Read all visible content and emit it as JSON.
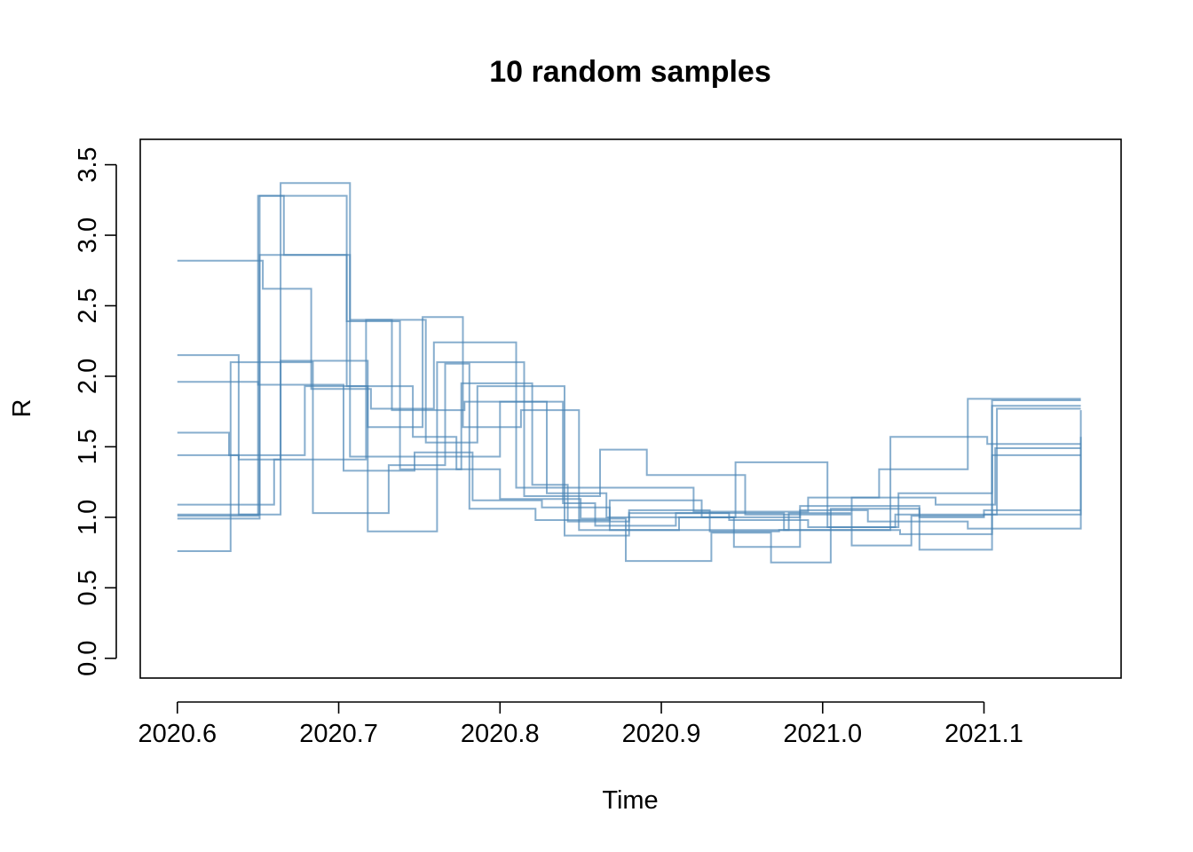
{
  "chart_data": {
    "type": "line",
    "step": "post",
    "title": "10 random samples",
    "xlabel": "Time",
    "ylabel": "R",
    "xlim": [
      2020.577,
      2021.185
    ],
    "ylim": [
      -0.14,
      3.68
    ],
    "xticks": [
      2020.6,
      2020.7,
      2020.8,
      2020.9,
      2021.0,
      2021.1
    ],
    "xtick_labels": [
      "2020.6",
      "2020.7",
      "2020.8",
      "2020.9",
      "2021.0",
      "2021.1"
    ],
    "yticks": [
      0.0,
      0.5,
      1.0,
      1.5,
      2.0,
      2.5,
      3.0,
      3.5
    ],
    "ytick_labels": [
      "0.0",
      "0.5",
      "1.0",
      "1.5",
      "2.0",
      "2.5",
      "3.0",
      "3.5"
    ],
    "grid": false,
    "legend": "none",
    "line_color": "#4682b4",
    "line_opacity": 0.65,
    "series": [
      {
        "x": [
          2020.6,
          2020.651,
          2020.666,
          2020.707,
          2020.733,
          2020.778,
          2020.829,
          2020.866,
          2020.945,
          2020.986,
          2021.06,
          2021.105,
          2021.16
        ],
        "y": [
          0.99,
          3.28,
          2.86,
          2.4,
          1.76,
          1.82,
          1.17,
          1.0,
          0.79,
          1.08,
          0.77,
          1.83,
          1.83
        ]
      },
      {
        "x": [
          2020.6,
          2020.651,
          2020.705,
          2020.738,
          2020.776,
          2020.82,
          2020.842,
          2020.88,
          2020.93,
          2020.973,
          2021.042,
          2021.102,
          2021.16
        ],
        "y": [
          1.02,
          2.86,
          2.39,
          1.34,
          1.95,
          1.23,
          0.97,
          1.05,
          0.9,
          0.91,
          1.57,
          1.52,
          1.52
        ]
      },
      {
        "x": [
          2020.6,
          2020.638,
          2020.664,
          2020.718,
          2020.752,
          2020.777,
          2020.813,
          2020.849,
          2020.911,
          2020.946,
          2021.003,
          2021.045,
          2021.108,
          2021.16
        ],
        "y": [
          1.44,
          1.41,
          2.11,
          1.64,
          2.42,
          1.64,
          1.76,
          0.91,
          1.0,
          1.39,
          0.93,
          1.02,
          1.77,
          1.77
        ]
      },
      {
        "x": [
          2020.6,
          2020.653,
          2020.683,
          2020.72,
          2020.759,
          2020.81,
          2020.846,
          2020.92,
          2020.991,
          2021.035,
          2021.09,
          2021.16
        ],
        "y": [
          2.82,
          2.62,
          1.91,
          1.77,
          2.24,
          1.21,
          1.21,
          1.04,
          1.14,
          1.34,
          1.84,
          1.84
        ]
      },
      {
        "x": [
          2020.6,
          2020.632,
          2020.679,
          2020.718,
          2020.761,
          2020.815,
          2020.862,
          2020.891,
          2020.952,
          2021.018,
          2021.055,
          2021.1,
          2021.16
        ],
        "y": [
          1.6,
          1.44,
          1.93,
          0.9,
          2.1,
          1.15,
          1.48,
          1.3,
          1.02,
          0.8,
          1.01,
          1.02,
          1.57
        ]
      },
      {
        "x": [
          2020.6,
          2020.638,
          2020.664,
          2020.707,
          2020.738,
          2020.8,
          2020.839,
          2020.859,
          2020.909,
          2020.976,
          2021.048,
          2021.105,
          2021.16
        ],
        "y": [
          2.15,
          1.02,
          3.37,
          1.43,
          1.43,
          1.82,
          1.1,
          0.94,
          1.03,
          0.91,
          0.88,
          1.44,
          1.44
        ]
      },
      {
        "x": [
          2020.6,
          2020.65,
          2020.703,
          2020.747,
          2020.783,
          2020.826,
          2020.868,
          2020.931,
          2020.979,
          2021.018,
          2021.07,
          2021.107,
          2021.16
        ],
        "y": [
          1.96,
          1.94,
          1.33,
          1.46,
          1.12,
          1.07,
          0.91,
          0.91,
          1.03,
          1.14,
          1.09,
          1.49,
          1.49
        ]
      },
      {
        "x": [
          2020.6,
          2020.633,
          2020.684,
          2020.731,
          2020.766,
          2020.781,
          2020.822,
          2020.868,
          2020.925,
          2020.986,
          2021.028,
          2021.09,
          2021.16
        ],
        "y": [
          0.76,
          2.1,
          1.03,
          1.37,
          2.09,
          1.06,
          0.98,
          1.12,
          1.0,
          1.05,
          0.97,
          0.92,
          1.76
        ]
      },
      {
        "x": [
          2020.6,
          2020.66,
          2020.717,
          2020.754,
          2020.786,
          2020.84,
          2020.88,
          2020.942,
          2020.991,
          2021.047,
          2021.105,
          2021.16
        ],
        "y": [
          1.09,
          1.41,
          2.4,
          1.53,
          1.93,
          0.87,
          1.03,
          0.98,
          0.93,
          1.17,
          1.79,
          1.79
        ]
      },
      {
        "x": [
          2020.6,
          2020.65,
          2020.705,
          2020.746,
          2020.773,
          2020.8,
          2020.85,
          2020.878,
          2020.931,
          2020.968,
          2021.005,
          2021.06,
          2021.1,
          2021.16
        ],
        "y": [
          1.01,
          3.28,
          1.93,
          1.57,
          1.34,
          1.13,
          0.99,
          0.69,
          0.89,
          0.68,
          1.06,
          1.0,
          1.05,
          1.05
        ]
      }
    ]
  }
}
